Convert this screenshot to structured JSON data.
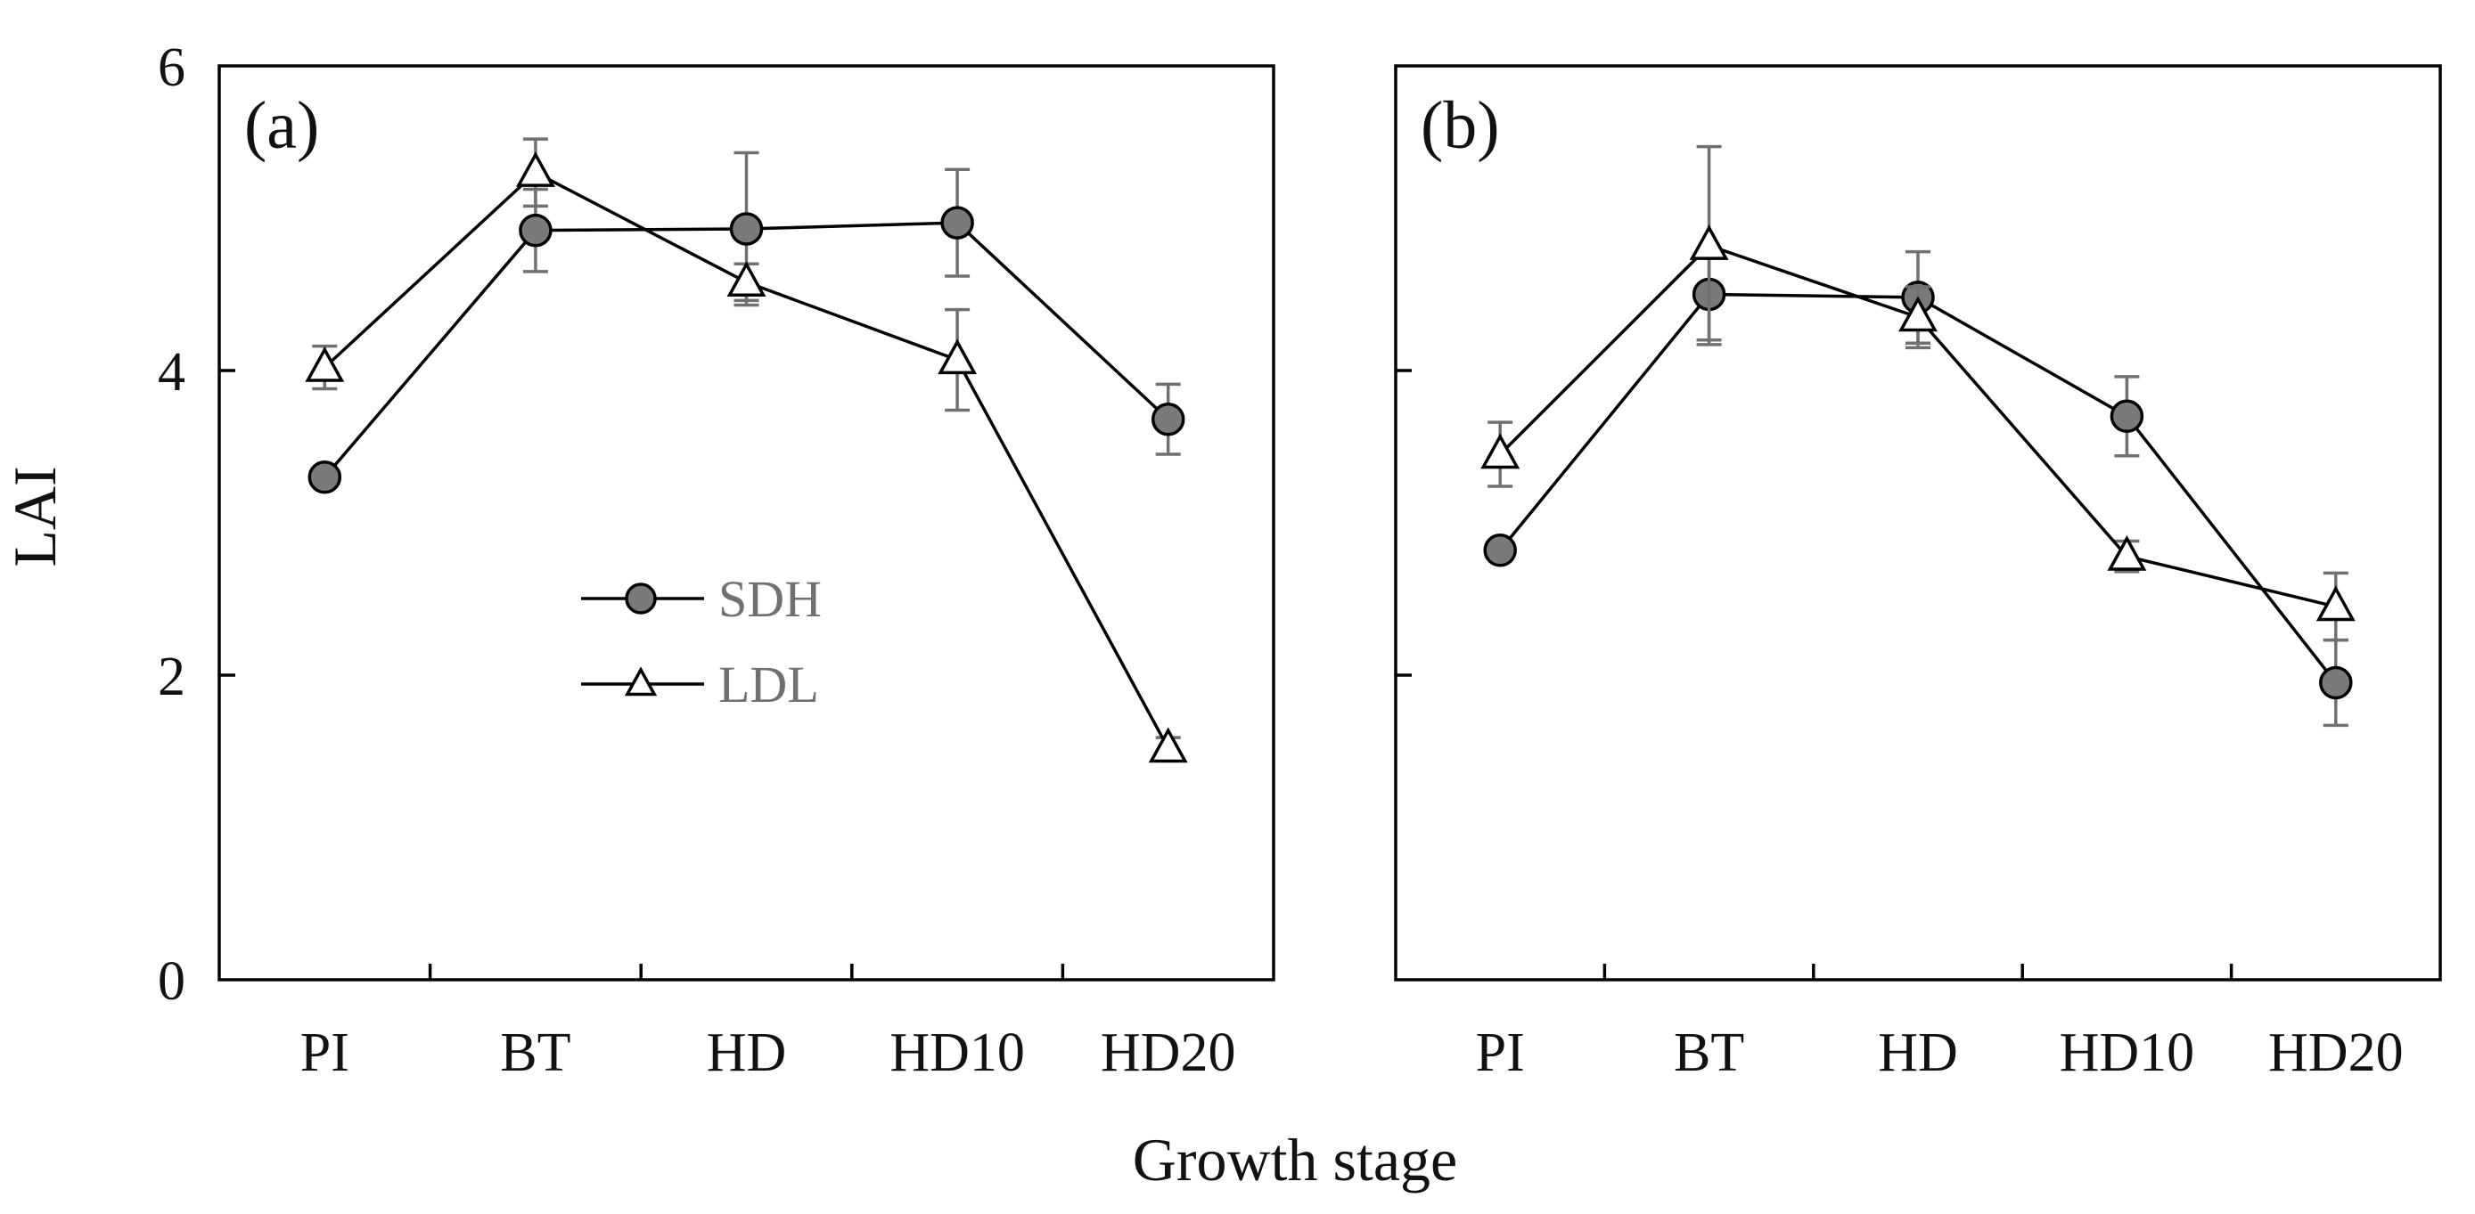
{
  "chart_data": {
    "type": "line",
    "ylabel": "LAI",
    "xlabel": "Growth stage",
    "ylim": [
      0,
      6
    ],
    "yticks": [
      0,
      2,
      4,
      6
    ],
    "categories": [
      "PI",
      "BT",
      "HD",
      "HD10",
      "HD20"
    ],
    "legend": {
      "placement": "center of panel (a)",
      "entries": [
        {
          "name": "SDH",
          "marker": "circle",
          "markerColor": "#7a7a7a"
        },
        {
          "name": "LDL",
          "marker": "triangle",
          "markerColor": "#ffffff"
        }
      ]
    },
    "panels": [
      {
        "label": "(a)",
        "series": [
          {
            "name": "SDH",
            "values": [
              3.3,
              4.92,
              4.93,
              4.97,
              3.68
            ],
            "errors": [
              0,
              0.27,
              0.5,
              0.35,
              0.23
            ]
          },
          {
            "name": "LDL",
            "values": [
              4.02,
              5.3,
              4.58,
              4.07,
              1.52
            ],
            "errors": [
              0.14,
              0.22,
              0.12,
              0.33,
              0.07
            ]
          }
        ]
      },
      {
        "label": "(b)",
        "series": [
          {
            "name": "SDH",
            "values": [
              2.82,
              4.5,
              4.48,
              3.7,
              1.95
            ],
            "errors": [
              0,
              0.3,
              0.3,
              0.26,
              0.28
            ]
          },
          {
            "name": "LDL",
            "values": [
              3.45,
              4.82,
              4.35,
              2.78,
              2.45
            ],
            "errors": [
              0.21,
              0.65,
              0.2,
              0.1,
              0.22
            ]
          }
        ]
      }
    ]
  }
}
